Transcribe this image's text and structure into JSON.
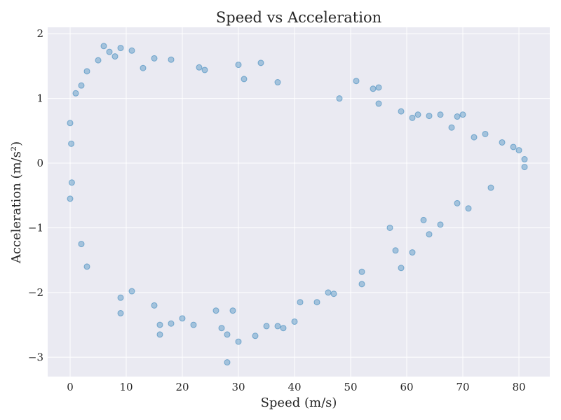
{
  "chart_data": {
    "type": "scatter",
    "title": "Speed vs Acceleration",
    "xlabel": "Speed (m/s)",
    "ylabel": "Acceleration (m/s²)",
    "xlim": [
      -4,
      85.5
    ],
    "ylim": [
      -3.3,
      2.1
    ],
    "xticks": [
      0,
      10,
      20,
      30,
      40,
      50,
      60,
      70,
      80
    ],
    "yticks": [
      -3,
      -2,
      -1,
      0,
      1,
      2
    ],
    "xtick_labels": [
      "0",
      "10",
      "20",
      "30",
      "40",
      "50",
      "60",
      "70",
      "80"
    ],
    "ytick_labels": [
      "−3",
      "−2",
      "−1",
      "0",
      "1",
      "2"
    ],
    "grid": true,
    "style": {
      "background": "#EAEAF2",
      "grid_color": "#FFFFFF",
      "point_color": "#1F77B4",
      "point_alpha": 0.35
    },
    "series": [
      {
        "points": [
          [
            0.0,
            0.62
          ],
          [
            0.0,
            -0.55
          ],
          [
            0.2,
            0.3
          ],
          [
            0.3,
            -0.3
          ],
          [
            1,
            1.08
          ],
          [
            2,
            1.2
          ],
          [
            2,
            -1.25
          ],
          [
            3,
            -1.6
          ],
          [
            3,
            1.42
          ],
          [
            5,
            1.59
          ],
          [
            6,
            1.81
          ],
          [
            7,
            1.72
          ],
          [
            8,
            1.65
          ],
          [
            9,
            1.78
          ],
          [
            9,
            -2.08
          ],
          [
            9,
            -2.32
          ],
          [
            11,
            1.74
          ],
          [
            11,
            -1.98
          ],
          [
            13,
            1.47
          ],
          [
            15,
            1.62
          ],
          [
            15,
            -2.2
          ],
          [
            16,
            -2.5
          ],
          [
            16,
            -2.65
          ],
          [
            18,
            -2.48
          ],
          [
            18,
            1.6
          ],
          [
            20,
            -2.4
          ],
          [
            22,
            -2.5
          ],
          [
            23,
            1.48
          ],
          [
            24,
            1.44
          ],
          [
            26,
            -2.28
          ],
          [
            27,
            -2.55
          ],
          [
            28,
            -2.65
          ],
          [
            28,
            -3.08
          ],
          [
            29,
            -2.28
          ],
          [
            30,
            -2.76
          ],
          [
            30,
            1.52
          ],
          [
            31,
            1.3
          ],
          [
            33,
            -2.67
          ],
          [
            34,
            1.55
          ],
          [
            35,
            -2.52
          ],
          [
            37,
            1.25
          ],
          [
            37,
            -2.52
          ],
          [
            38,
            -2.55
          ],
          [
            40,
            -2.45
          ],
          [
            41,
            -2.15
          ],
          [
            44,
            -2.15
          ],
          [
            46,
            -2.0
          ],
          [
            47,
            -2.02
          ],
          [
            48,
            1.0
          ],
          [
            51,
            1.27
          ],
          [
            52,
            -1.87
          ],
          [
            52,
            -1.68
          ],
          [
            54,
            1.15
          ],
          [
            55,
            1.17
          ],
          [
            55,
            0.92
          ],
          [
            57,
            -1.0
          ],
          [
            58,
            -1.35
          ],
          [
            59,
            0.8
          ],
          [
            59,
            -1.62
          ],
          [
            61,
            0.7
          ],
          [
            61,
            -1.38
          ],
          [
            62,
            0.75
          ],
          [
            63,
            -0.88
          ],
          [
            64,
            0.73
          ],
          [
            64,
            -1.1
          ],
          [
            66,
            0.75
          ],
          [
            66,
            -0.95
          ],
          [
            68,
            0.55
          ],
          [
            69,
            0.72
          ],
          [
            69,
            -0.62
          ],
          [
            70,
            0.75
          ],
          [
            71,
            -0.7
          ],
          [
            72,
            0.4
          ],
          [
            74,
            0.45
          ],
          [
            75,
            -0.38
          ],
          [
            77,
            0.32
          ],
          [
            79,
            0.25
          ],
          [
            80,
            0.2
          ],
          [
            81,
            0.06
          ],
          [
            81,
            -0.06
          ]
        ]
      }
    ]
  }
}
